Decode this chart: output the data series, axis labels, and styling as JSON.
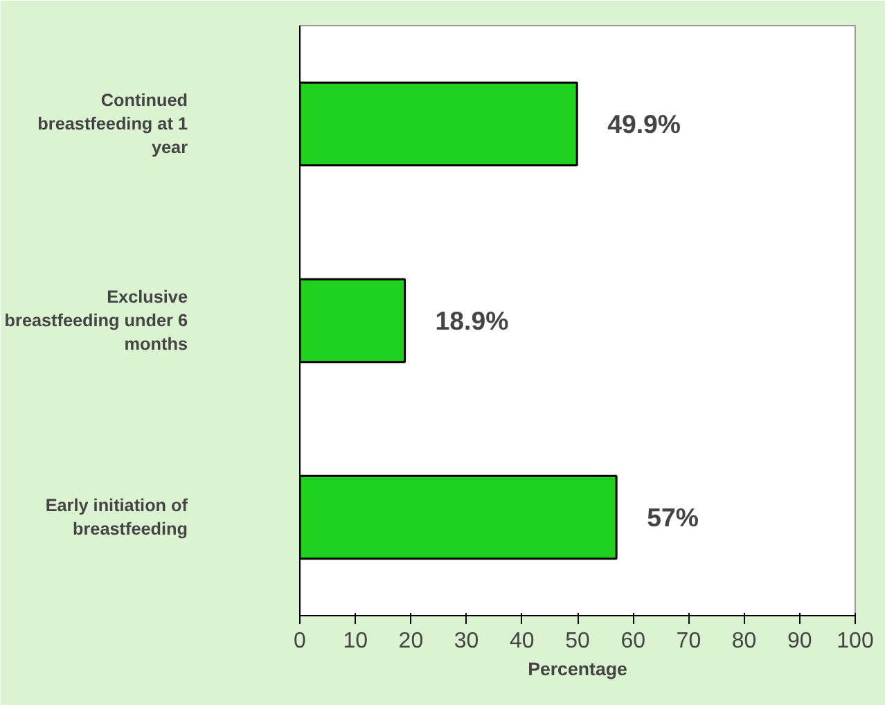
{
  "chart_data": {
    "type": "bar",
    "orientation": "horizontal",
    "categories": [
      "Continued breastfeeding at 1 year",
      "Exclusive breastfeeding under 6 months",
      "Early initiation of breastfeeding"
    ],
    "values": [
      49.9,
      18.9,
      57
    ],
    "value_labels": [
      "49.9%",
      "18.9%",
      "57%"
    ],
    "color": "#1fd11f",
    "xlim": [
      0,
      100
    ],
    "xticks": [
      0,
      10,
      20,
      30,
      40,
      50,
      60,
      70,
      80,
      90,
      100
    ],
    "xlabel": "Percentage"
  }
}
